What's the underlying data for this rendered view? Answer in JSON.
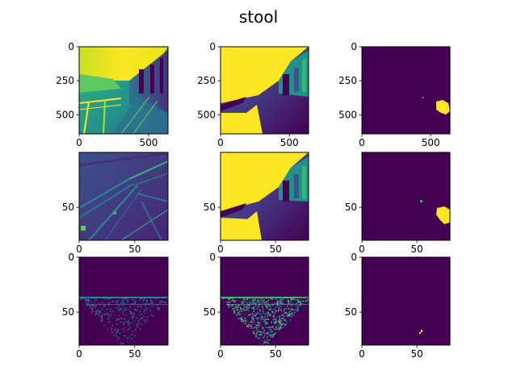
{
  "title": "stool",
  "colors": {
    "viridis_dark": "#440154",
    "viridis_blue": "#31688e",
    "viridis_teal": "#21918c",
    "viridis_green": "#35b779",
    "viridis_yellow": "#fde725"
  },
  "chart_data": [
    {
      "type": "heatmap",
      "name": "row1-col1",
      "colormap": "viridis",
      "xlim": [
        0,
        640
      ],
      "ylim": [
        640,
        0
      ],
      "xticks": [
        0,
        500
      ],
      "yticks": [
        0,
        250,
        500
      ],
      "content": "grayscale street scene with building and railing"
    },
    {
      "type": "heatmap",
      "name": "row1-col2",
      "colormap": "viridis",
      "xlim": [
        0,
        640
      ],
      "ylim": [
        640,
        0
      ],
      "xticks": [
        0,
        500
      ],
      "yticks": [
        0,
        250,
        500
      ],
      "content": "depth-like map, bright sky region"
    },
    {
      "type": "heatmap",
      "name": "row1-col3",
      "colormap": "viridis",
      "xlim": [
        0,
        640
      ],
      "ylim": [
        640,
        0
      ],
      "xticks": [
        0,
        500
      ],
      "yticks": [
        0,
        250,
        500
      ],
      "content": "binary mask, small blob near right edge"
    },
    {
      "type": "heatmap",
      "name": "row2-col1",
      "colormap": "viridis",
      "xlim": [
        0,
        80
      ],
      "ylim": [
        80,
        0
      ],
      "xticks": [
        0,
        50
      ],
      "yticks": [
        50
      ],
      "content": "low-resolution feature map with diagonal streaks"
    },
    {
      "type": "heatmap",
      "name": "row2-col2",
      "colormap": "viridis",
      "xlim": [
        0,
        80
      ],
      "ylim": [
        80,
        0
      ],
      "xticks": [
        0,
        50
      ],
      "yticks": [
        50
      ],
      "content": "downsampled depth-like map"
    },
    {
      "type": "heatmap",
      "name": "row2-col3",
      "colormap": "viridis",
      "xlim": [
        0,
        80
      ],
      "ylim": [
        80,
        0
      ],
      "xticks": [
        0,
        50
      ],
      "yticks": [
        50
      ],
      "content": "downsampled binary mask, blob near right edge"
    },
    {
      "type": "heatmap",
      "name": "row3-col1",
      "colormap": "viridis",
      "xlim": [
        0,
        80
      ],
      "ylim": [
        80,
        0
      ],
      "xticks": [
        0,
        50
      ],
      "yticks": [
        0,
        50
      ],
      "content": "sparse triangular scatter below a horizontal line"
    },
    {
      "type": "heatmap",
      "name": "row3-col2",
      "colormap": "viridis",
      "xlim": [
        0,
        80
      ],
      "ylim": [
        80,
        0
      ],
      "xticks": [
        0,
        50
      ],
      "yticks": [
        0,
        50
      ],
      "content": "denser triangular scatter below a horizontal line"
    },
    {
      "type": "heatmap",
      "name": "row3-col3",
      "colormap": "viridis",
      "xlim": [
        0,
        80
      ],
      "ylim": [
        80,
        0
      ],
      "xticks": [
        0,
        50
      ],
      "yticks": [
        0,
        50
      ],
      "content": "near-empty mask with a tiny yellow speck"
    }
  ]
}
